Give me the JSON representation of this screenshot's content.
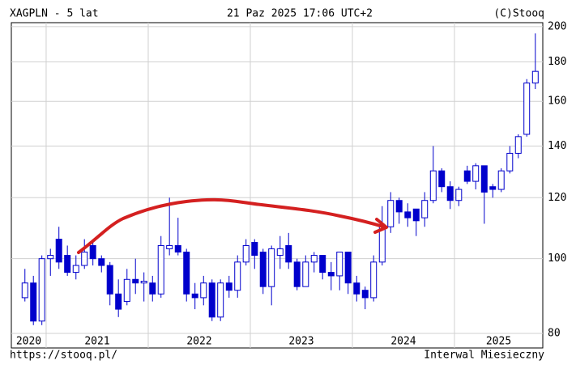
{
  "chart_data": {
    "type": "candlestick",
    "title": "XAGPLN - 5 lat",
    "subtitle": "21 Paz 2025 17:06 UTC+2",
    "source": "(C)Stooq",
    "footer_left": "https://stooq.pl/",
    "footer_right": "Interwal Miesieczny",
    "x": [
      2020.792,
      2020.875,
      2020.958,
      2021.042,
      2021.125,
      2021.208,
      2021.292,
      2021.375,
      2021.458,
      2021.542,
      2021.625,
      2021.708,
      2021.792,
      2021.875,
      2021.958,
      2022.042,
      2022.125,
      2022.208,
      2022.292,
      2022.375,
      2022.458,
      2022.542,
      2022.625,
      2022.708,
      2022.792,
      2022.875,
      2022.958,
      2023.042,
      2023.125,
      2023.208,
      2023.292,
      2023.375,
      2023.458,
      2023.542,
      2023.625,
      2023.708,
      2023.792,
      2023.875,
      2023.958,
      2024.042,
      2024.125,
      2024.208,
      2024.292,
      2024.375,
      2024.458,
      2024.542,
      2024.625,
      2024.708,
      2024.792,
      2024.875,
      2024.958,
      2025.042,
      2025.125,
      2025.208,
      2025.292,
      2025.375,
      2025.458,
      2025.542,
      2025.625,
      2025.708,
      2025.792
    ],
    "open": [
      89,
      93,
      83,
      100,
      106,
      101,
      96,
      98,
      104,
      100,
      98,
      90,
      88,
      94,
      93,
      93,
      90,
      103,
      104,
      102,
      90,
      89,
      93,
      84,
      93,
      91,
      99,
      105,
      102,
      92,
      101,
      104,
      99,
      92,
      99,
      101,
      96,
      95,
      102,
      93,
      91,
      89,
      99,
      110,
      119,
      115,
      116,
      113,
      119,
      130,
      124,
      119,
      130,
      126,
      132,
      124,
      123,
      130,
      137,
      145,
      169
    ],
    "high": [
      97,
      95,
      101,
      103,
      110,
      104,
      101,
      106,
      105,
      101,
      99,
      94,
      97,
      100,
      96,
      95,
      107,
      120,
      113,
      103,
      93,
      95,
      94,
      94,
      95,
      101,
      106,
      106,
      103,
      104,
      107,
      108,
      100,
      101,
      102,
      101,
      99,
      102,
      102,
      95,
      92,
      101,
      117,
      122,
      120,
      118,
      116,
      122,
      140,
      131,
      126,
      124,
      132,
      133,
      132,
      125,
      131,
      140,
      145,
      171,
      196
    ],
    "low": [
      88,
      82,
      82,
      95,
      97,
      95,
      94,
      97,
      98,
      96,
      87,
      84,
      87,
      90,
      88,
      88,
      89,
      101,
      101,
      88,
      86,
      87,
      83,
      83,
      89,
      89,
      98,
      97,
      90,
      87,
      97,
      97,
      91,
      92,
      96,
      94,
      91,
      91,
      90,
      88,
      86,
      88,
      98,
      108,
      111,
      110,
      107,
      110,
      118,
      122,
      116,
      117,
      125,
      123,
      111,
      120,
      122,
      129,
      135,
      144,
      166
    ],
    "close": [
      93,
      83,
      100,
      101,
      99,
      96,
      98,
      102,
      100,
      98,
      90,
      86,
      94,
      93,
      93.5,
      90,
      104,
      104,
      102,
      90,
      89,
      93,
      84,
      93,
      91,
      99,
      104,
      101,
      92,
      103,
      103,
      99,
      92,
      99,
      101,
      96,
      95,
      102,
      93,
      90,
      89,
      99,
      110,
      119,
      115,
      113,
      112,
      119,
      130,
      124,
      119,
      123,
      126,
      132,
      122,
      123,
      130,
      137,
      144,
      169,
      175
    ],
    "up_color": "#ffffff",
    "down_color": "#0000cc",
    "line_color": "#0000cc",
    "xlim": [
      2020.659,
      2025.865
    ],
    "xticks": [
      2020,
      2021,
      2022,
      2023,
      2024,
      2025
    ],
    "ylim": [
      80,
      202.4
    ],
    "yticks": [
      80,
      100,
      120,
      140,
      160,
      180,
      200
    ],
    "log_y": true,
    "grid": true
  }
}
